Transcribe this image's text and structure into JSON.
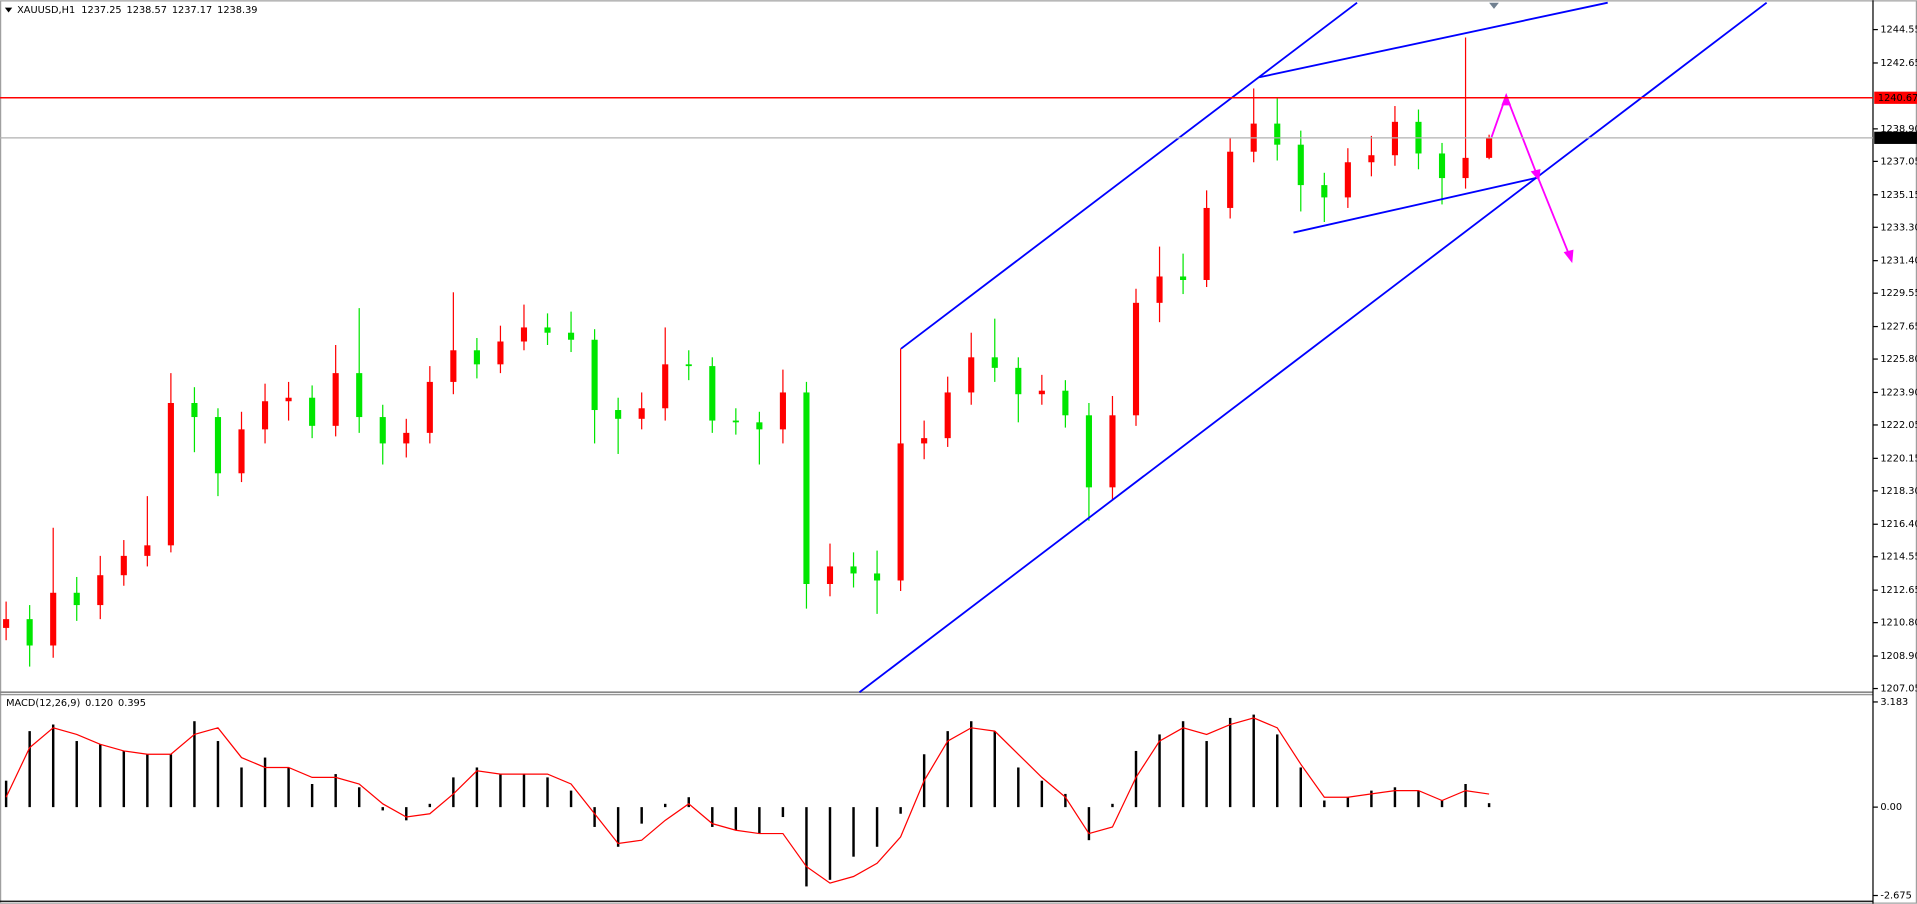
{
  "chart_data": {
    "type": "candlestick",
    "title": "XAUUSD,H1",
    "up_color": "#ff0000",
    "down_color": "#00e600",
    "open": [
      1210.5,
      1211.0,
      1209.5,
      1212.5,
      1211.8,
      1213.5,
      1214.6,
      1215.2,
      1223.3,
      1222.5,
      1219.3,
      1221.8,
      1223.4,
      1223.6,
      1222.0,
      1225.0,
      1222.5,
      1221.0,
      1221.6,
      1224.5,
      1226.3,
      1225.5,
      1226.8,
      1227.6,
      1227.3,
      1226.9,
      1222.9,
      1222.4,
      1223.0,
      1225.5,
      1225.4,
      1222.3,
      1222.2,
      1221.8,
      1223.9,
      1213.0,
      1214.0,
      1213.6,
      1213.2,
      1221.0,
      1221.3,
      1223.9,
      1225.9,
      1225.3,
      1223.8,
      1224.0,
      1222.6,
      1218.5,
      1222.6,
      1229.0,
      1230.5,
      1230.3,
      1234.4,
      1237.6,
      1239.2,
      1238.0,
      1235.7,
      1235.0,
      1237.0,
      1237.4,
      1239.3,
      1237.5,
      1236.1,
      1237.25
    ],
    "high": [
      1212.0,
      1211.8,
      1216.2,
      1213.4,
      1214.6,
      1215.5,
      1218.0,
      1225.0,
      1224.2,
      1223.0,
      1222.8,
      1224.4,
      1224.5,
      1224.3,
      1226.6,
      1228.7,
      1223.2,
      1222.4,
      1225.4,
      1229.6,
      1227.0,
      1227.7,
      1228.9,
      1228.4,
      1228.5,
      1227.5,
      1223.6,
      1223.9,
      1227.6,
      1226.3,
      1225.9,
      1223.0,
      1222.8,
      1225.2,
      1224.5,
      1215.3,
      1214.8,
      1214.9,
      1226.4,
      1222.3,
      1224.8,
      1227.3,
      1228.1,
      1225.9,
      1224.9,
      1224.6,
      1223.3,
      1223.7,
      1229.8,
      1232.2,
      1231.8,
      1235.4,
      1238.4,
      1241.2,
      1240.7,
      1238.8,
      1236.4,
      1237.8,
      1238.5,
      1240.2,
      1240.0,
      1238.1,
      1244.1,
      1238.57
    ],
    "low": [
      1209.8,
      1208.3,
      1208.8,
      1210.9,
      1211.0,
      1212.9,
      1214.0,
      1214.8,
      1220.5,
      1218.0,
      1218.8,
      1221.0,
      1222.3,
      1221.3,
      1221.4,
      1221.6,
      1219.8,
      1220.2,
      1221.0,
      1223.8,
      1224.7,
      1225.0,
      1226.3,
      1226.6,
      1226.2,
      1221.0,
      1220.4,
      1221.8,
      1222.3,
      1224.6,
      1221.6,
      1221.5,
      1219.8,
      1221.0,
      1211.6,
      1212.3,
      1212.8,
      1211.3,
      1212.6,
      1220.1,
      1220.8,
      1223.2,
      1224.5,
      1222.2,
      1223.2,
      1221.9,
      1216.6,
      1217.8,
      1222.0,
      1227.9,
      1229.5,
      1229.9,
      1233.8,
      1237.0,
      1237.1,
      1234.2,
      1233.6,
      1234.4,
      1236.2,
      1236.8,
      1236.6,
      1234.6,
      1235.5,
      1237.17
    ],
    "close": [
      1211.0,
      1209.5,
      1212.5,
      1211.8,
      1213.5,
      1214.6,
      1215.2,
      1223.3,
      1222.5,
      1219.3,
      1221.8,
      1223.4,
      1223.6,
      1222.0,
      1225.0,
      1222.5,
      1221.0,
      1221.6,
      1224.5,
      1226.3,
      1225.5,
      1226.8,
      1227.6,
      1227.3,
      1226.9,
      1222.9,
      1222.4,
      1223.0,
      1225.5,
      1225.4,
      1222.3,
      1222.2,
      1221.8,
      1223.9,
      1213.0,
      1214.0,
      1213.6,
      1213.2,
      1221.0,
      1221.3,
      1223.9,
      1225.9,
      1225.3,
      1223.8,
      1224.0,
      1222.6,
      1218.5,
      1222.6,
      1229.0,
      1230.5,
      1230.3,
      1234.4,
      1237.6,
      1239.2,
      1238.0,
      1235.7,
      1235.0,
      1237.0,
      1237.4,
      1239.3,
      1237.5,
      1236.1,
      1237.25,
      1238.39
    ],
    "ylim": [
      1206.84,
      1246.08
    ],
    "yticks": [
      1207.05,
      {
        "value": 1208.9,
        "label": "1208.90"
      },
      {
        "value": 1210.8,
        "label": "1210.80"
      },
      1212.65,
      1214.55,
      {
        "value": 1216.4,
        "label": "1216.40"
      },
      {
        "value": 1218.3,
        "label": "1218.30"
      },
      1220.15,
      1222.05,
      {
        "value": 1223.9,
        "label": "1223.90"
      },
      {
        "value": 1225.8,
        "label": "1225.80"
      },
      1227.65,
      1229.55,
      {
        "value": 1231.4,
        "label": "1231.40"
      },
      {
        "value": 1233.3,
        "label": "1233.30"
      },
      1235.15,
      1237.05,
      {
        "value": 1238.9,
        "label": "1238.90"
      },
      1242.65,
      1244.55
    ],
    "levels": [
      {
        "value": 1240.67,
        "color": "#ff0000"
      }
    ],
    "current_color": "#000000",
    "macd": {
      "title": "MACD(12,26,9)",
      "readout": [
        {
          "value": 0.12,
          "label": "0.120"
        },
        {
          "value": 0.395,
          "label": "0.395"
        }
      ],
      "values": [
        0.8,
        2.3,
        2.5,
        2.0,
        1.9,
        1.7,
        1.6,
        1.6,
        2.6,
        2.0,
        1.2,
        1.5,
        1.2,
        0.7,
        1.0,
        0.6,
        -0.1,
        -0.4,
        0.1,
        0.9,
        1.2,
        1.0,
        1.0,
        0.9,
        0.5,
        -0.6,
        -1.2,
        -0.5,
        0.1,
        0.3,
        -0.6,
        -0.7,
        -0.8,
        -0.3,
        -2.4,
        -2.2,
        -1.5,
        -1.2,
        -0.2,
        1.6,
        2.3,
        2.6,
        2.3,
        1.2,
        0.8,
        0.4,
        -1.0,
        0.1,
        1.7,
        2.2,
        2.6,
        2.0,
        2.7,
        2.8,
        2.2,
        1.2,
        0.2,
        0.3,
        0.5,
        0.6,
        0.5,
        0.2,
        0.7,
        0.12
      ],
      "signal": [
        0.3,
        1.8,
        2.4,
        2.2,
        1.9,
        1.7,
        1.6,
        1.6,
        2.2,
        2.4,
        1.5,
        1.2,
        1.2,
        0.9,
        0.9,
        0.7,
        0.1,
        -0.3,
        -0.2,
        0.4,
        1.1,
        1.0,
        1.0,
        1.0,
        0.7,
        -0.2,
        -1.1,
        -1.0,
        -0.4,
        0.1,
        -0.5,
        -0.7,
        -0.8,
        -0.8,
        -1.8,
        -2.3,
        -2.1,
        -1.7,
        -0.9,
        0.8,
        2.0,
        2.4,
        2.3,
        1.6,
        0.9,
        0.3,
        -0.8,
        -0.6,
        0.9,
        2.0,
        2.4,
        2.2,
        2.5,
        2.7,
        2.4,
        1.3,
        0.3,
        0.3,
        0.4,
        0.5,
        0.5,
        0.2,
        0.5,
        0.395
      ],
      "bar_color": "#000000",
      "signal_color": "#ff0000",
      "ylim": [
        -2.85,
        3.366
      ],
      "yticks": [
        3.183,
        {
          "value": 0,
          "label": "0.00"
        },
        -2.675
      ]
    }
  }
}
